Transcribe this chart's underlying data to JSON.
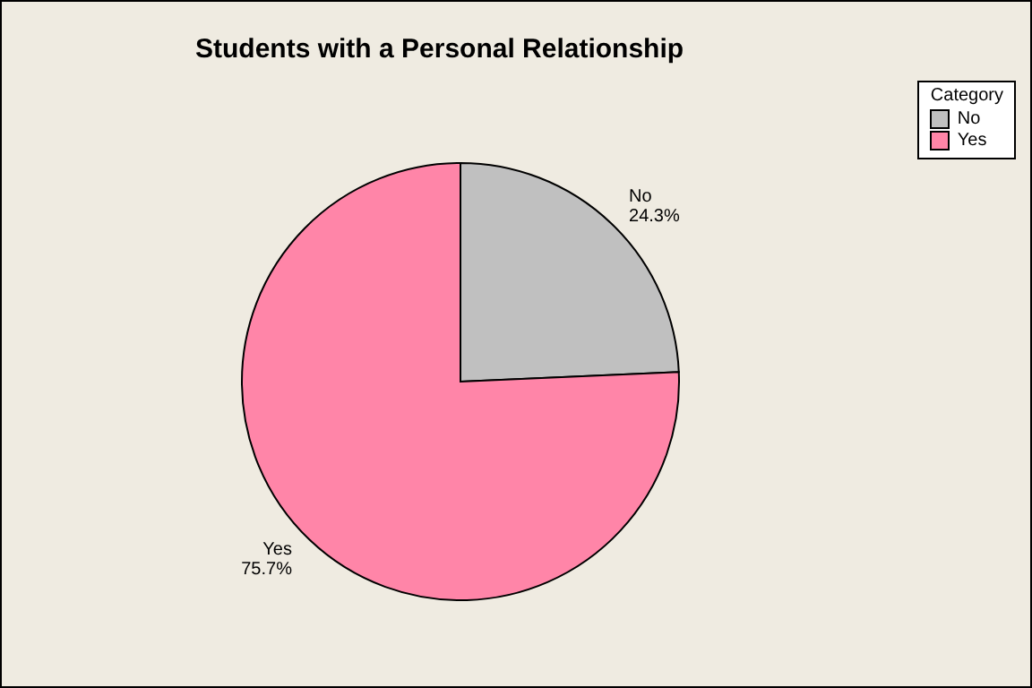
{
  "chart_data": {
    "type": "pie",
    "title": "Students with a Personal Relationship",
    "legend_title": "Category",
    "categories": [
      "No",
      "Yes"
    ],
    "values": [
      24.3,
      75.7
    ],
    "colors": [
      "#c0c0c0",
      "#ff85a8"
    ],
    "value_labels": [
      "24.3%",
      "75.7%"
    ],
    "legend": "top right"
  }
}
